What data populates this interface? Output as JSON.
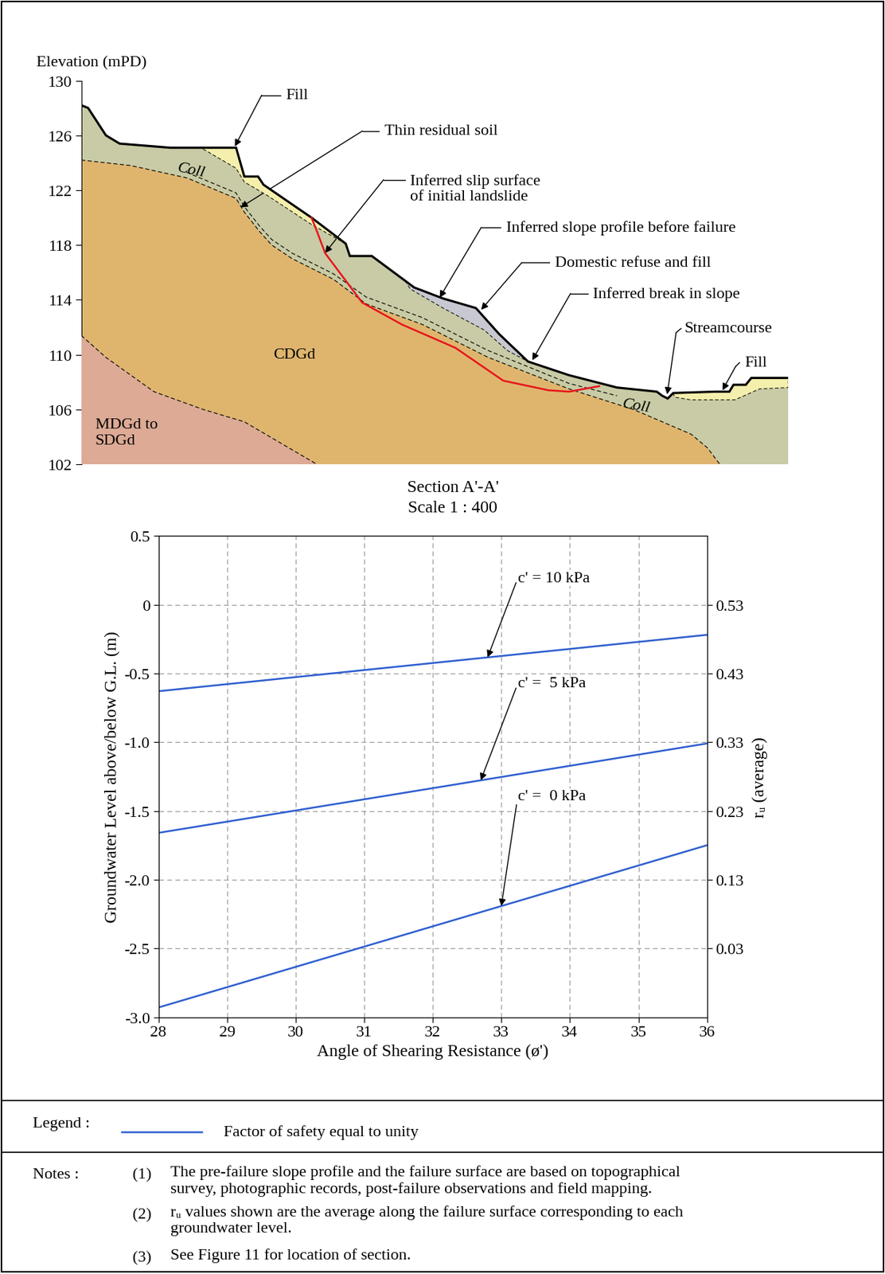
{
  "chart_data": [
    {
      "type": "section",
      "title": "Section A'-A'",
      "subtitle": "Scale 1 : 400",
      "ylabel": "Elevation (mPD)",
      "ylim": [
        102,
        130
      ],
      "yticks": [
        102,
        106,
        110,
        114,
        118,
        122,
        126,
        130
      ],
      "surface": {
        "color": "#000000",
        "x": [
          0,
          0.5,
          1.8,
          2.8,
          6.5,
          11.3,
          11.9,
          12.9,
          13.3,
          16.8,
          19.3,
          19.6,
          21.2,
          24.3,
          26.4,
          28.8,
          30.5,
          32.6,
          35.6,
          39.1,
          42.0,
          42.4,
          42.8,
          43.2,
          46.3,
          47.3,
          47.6,
          48.5,
          48.9,
          51.6
        ],
        "elevation": [
          128.2,
          128.0,
          126.0,
          125.4,
          125.1,
          125.1,
          123.0,
          123.0,
          122.4,
          120.0,
          118.1,
          117.2,
          117.2,
          114.9,
          114.1,
          113.4,
          111.5,
          109.5,
          108.5,
          107.6,
          107.3,
          107.0,
          106.8,
          107.2,
          107.3,
          107.3,
          107.8,
          107.8,
          108.3,
          108.3
        ]
      },
      "units": [
        {
          "color": "#c8cba5"
        },
        {
          "color": "#dfb56e",
          "top": {
            "x": [
              0,
              3.6,
              7.7,
              11.3,
              11.9,
              13.0,
              13.9,
              15.4,
              18.4,
              20.8,
              24.9,
              29.7,
              35.6,
              40.3,
              44.5,
              45.7,
              46.6
            ],
            "elevation": [
              124.2,
              123.8,
              122.9,
              121.4,
              120.4,
              119.0,
              118.0,
              117.0,
              115.5,
              113.7,
              112.2,
              109.8,
              107.5,
              106.0,
              104.2,
              103.2,
              102.0
            ]
          }
        },
        {
          "color": "#dcaa95",
          "top": {
            "x": [
              0,
              1.8,
              5.3,
              8.9,
              11.9,
              17.2
            ],
            "elevation": [
              111.4,
              109.8,
              107.3,
              106.0,
              105.1,
              102.0
            ]
          }
        }
      ],
      "residual_soil_top": {
        "x": [
          7.7,
          11.3,
          11.9,
          13.0,
          13.9,
          15.4,
          18.4,
          20.8,
          24.9,
          29.7,
          35.6,
          39.1
        ],
        "elevation": [
          123.3,
          121.8,
          120.8,
          119.4,
          118.4,
          117.4,
          115.9,
          114.2,
          112.7,
          110.3,
          107.9,
          107.0
        ]
      },
      "lenses": [
        {
          "color": "#f5efad",
          "x": [
            8.9,
            11.3,
            11.9,
            12.9,
            13.3,
            16.8,
            19.3,
            16.8,
            13.6,
            11.9,
            11.3,
            8.9
          ],
          "elevation": [
            125.1,
            125.1,
            123.0,
            123.0,
            122.4,
            120.0,
            118.1,
            119.5,
            121.6,
            122.6,
            123.6,
            125.0
          ]
        },
        {
          "color": "#c8c8d2",
          "x": [
            23.7,
            24.3,
            26.4,
            28.8,
            30.5,
            32.6,
            31.1,
            29.4,
            26.4,
            24.0
          ],
          "elevation": [
            115.3,
            114.9,
            114.1,
            113.4,
            111.5,
            109.5,
            110.3,
            111.8,
            113.4,
            114.8
          ]
        },
        {
          "color": "#f5efad",
          "x": [
            43.2,
            46.3,
            47.3,
            47.6,
            48.5,
            48.9,
            51.6,
            51.6,
            49.5,
            47.7,
            44.5,
            43.3
          ],
          "elevation": [
            107.2,
            107.3,
            107.3,
            107.8,
            107.8,
            108.3,
            108.3,
            107.6,
            107.5,
            106.7,
            106.7,
            106.9
          ]
        }
      ],
      "slip_surface": {
        "color": "#e8141b",
        "x": [
          16.8,
          17.2,
          17.8,
          19.0,
          20.5,
          23.4,
          27.3,
          30.8,
          34.1,
          35.6,
          37.8
        ],
        "elevation": [
          120.0,
          119.0,
          117.4,
          115.8,
          113.8,
          112.2,
          110.5,
          108.1,
          107.4,
          107.3,
          107.7
        ]
      },
      "labels": [
        "Coll",
        "Coll",
        "CDGd",
        "MDGd to\nSDGd"
      ],
      "callouts": [
        "Fill",
        "Thin residual soil",
        "Inferred slip surface\nof initial landslide",
        "Inferred slope profile before failure",
        "Domestic refuse and fill",
        "Inferred break in slope",
        "Streamcourse",
        "Fill"
      ]
    },
    {
      "type": "line",
      "xlabel": "Angle of Shearing Resistance (ø')",
      "ylabel": "Groundwater Level above/below G.L. (m)",
      "y2label": "rᵤ (average)",
      "x": [
        28,
        36
      ],
      "xlim": [
        28,
        36
      ],
      "xticks": [
        28,
        29,
        30,
        31,
        32,
        33,
        34,
        35,
        36
      ],
      "ylim": [
        -3.0,
        0.5
      ],
      "yticks": [
        -3.0,
        -2.5,
        -2.0,
        -1.5,
        -1.0,
        -0.5,
        0,
        0.5
      ],
      "y2lim": [
        -0.07,
        0.63
      ],
      "y2ticks": [
        0.03,
        0.13,
        0.23,
        0.33,
        0.43,
        0.53
      ],
      "grid": true,
      "series": [
        {
          "name": "c' = 10 kPa",
          "color": "#2f5fd0",
          "values": [
            -0.63,
            -0.22
          ]
        },
        {
          "name": "c' =  5 kPa",
          "color": "#2f5fd0",
          "values": [
            -1.66,
            -1.01
          ]
        },
        {
          "name": "c' =  0 kPa",
          "color": "#2f5fd0",
          "values": [
            -2.93,
            -1.75
          ]
        }
      ]
    }
  ],
  "legend_box": {
    "heading": "Legend :",
    "entries": [
      {
        "label": "Factor of safety equal to unity",
        "color": "#2f5fd0"
      }
    ]
  },
  "notes": {
    "heading": "Notes :",
    "items": [
      {
        "number": "(1)",
        "text": "The pre-failure slope profile and the failure surface are based on topographical\nsurvey, photographic records, post-failure observations and field mapping."
      },
      {
        "number": "(2)",
        "text": "rᵤ values shown are the average along the failure surface corresponding to each\ngroundwater level."
      },
      {
        "number": "(3)",
        "text": "See Figure 11 for location of section."
      }
    ]
  }
}
